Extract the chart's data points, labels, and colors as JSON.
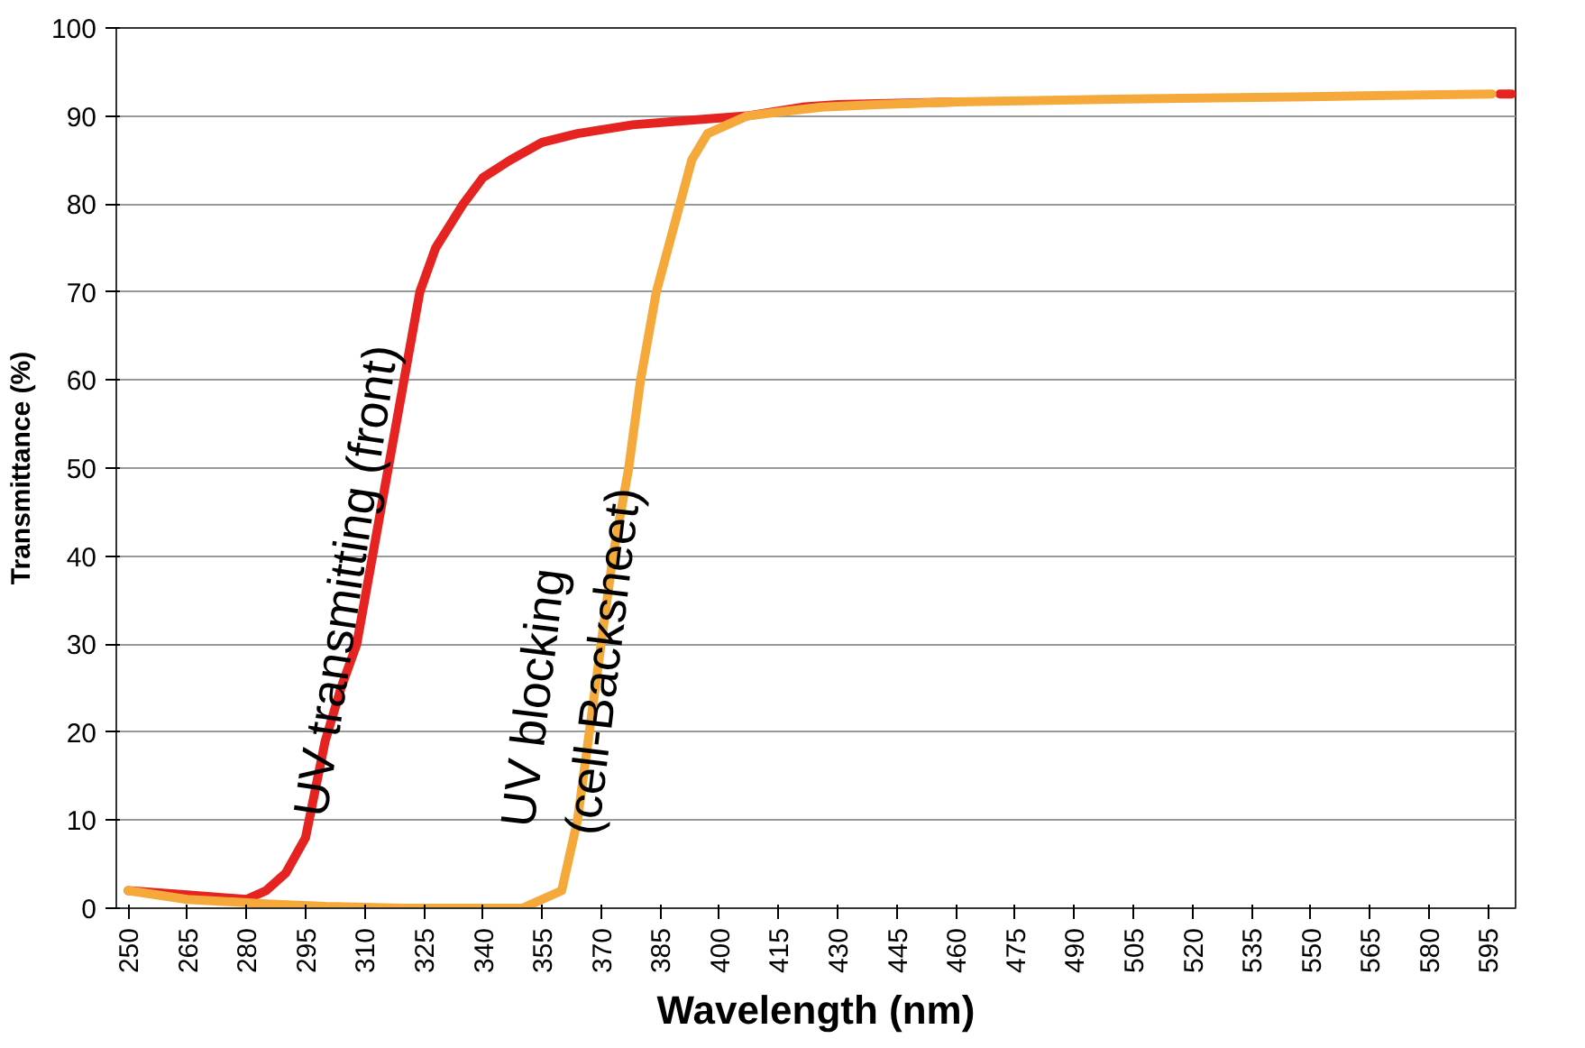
{
  "chart_data": {
    "type": "line",
    "xlabel": "Wavelength (nm)",
    "ylabel": "Transmittance (%)",
    "xlim": [
      247,
      602
    ],
    "ylim": [
      0,
      100
    ],
    "xticks": [
      250,
      265,
      280,
      295,
      310,
      325,
      340,
      355,
      370,
      385,
      400,
      415,
      430,
      445,
      460,
      475,
      490,
      505,
      520,
      535,
      550,
      565,
      580,
      595
    ],
    "yticks": [
      0,
      10,
      20,
      30,
      40,
      50,
      60,
      70,
      80,
      90,
      100
    ],
    "grid": "y",
    "line_style": "solid",
    "marker": "none",
    "series": [
      {
        "color": "#e52421",
        "x": [
          250,
          265,
          280,
          285,
          290,
          295,
          300,
          304,
          308,
          312,
          316,
          320,
          324,
          328,
          335,
          340,
          347,
          355,
          364,
          378,
          392,
          407,
          421,
          430,
          460,
          500,
          598,
          601
        ],
        "values": [
          2,
          1.5,
          1,
          2,
          4,
          8,
          19,
          25,
          30,
          40,
          50,
          60,
          70,
          75,
          80,
          83,
          85,
          87,
          88,
          89,
          89.5,
          90,
          91,
          91.3,
          91.6,
          null,
          92.5,
          92.5
        ]
      },
      {
        "color": "#f6a93b",
        "x": [
          250,
          265,
          285,
          300,
          320,
          340,
          350,
          355,
          360,
          362,
          364,
          367,
          370,
          373,
          377,
          380,
          384,
          390,
          393,
          397,
          402,
          407,
          416,
          426,
          440,
          460,
          500,
          550,
          596
        ],
        "values": [
          2,
          1,
          0.5,
          0.2,
          0,
          0,
          0,
          1,
          2,
          6,
          10,
          20,
          30,
          40,
          50,
          60,
          70,
          80,
          85,
          88,
          89,
          90,
          90.5,
          91,
          91.3,
          91.6,
          91.9,
          92.2,
          92.5
        ]
      }
    ],
    "annotations": [
      "UV transmitting (front)",
      "UV blocking\n(cell-Backsheet)"
    ]
  }
}
